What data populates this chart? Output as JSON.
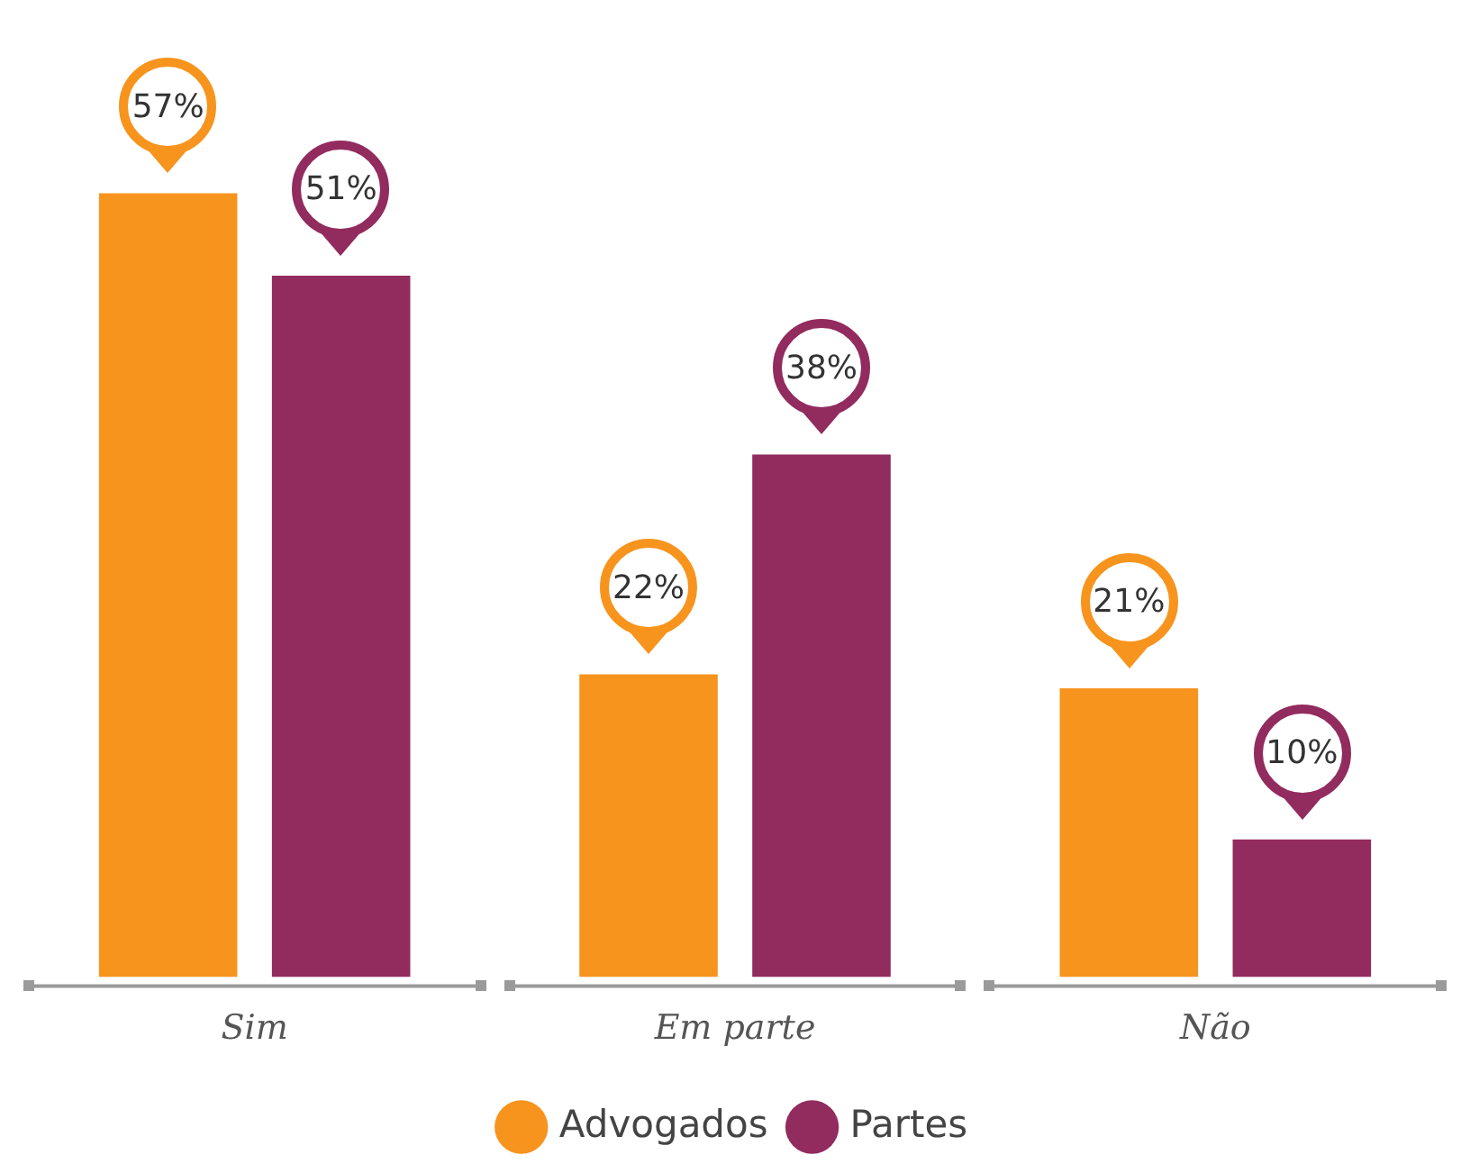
{
  "chart_data": {
    "type": "bar",
    "categories": [
      "Sim",
      "Em parte",
      "Não"
    ],
    "series": [
      {
        "name": "Advogados",
        "color": "#f7941d",
        "values": [
          57,
          22,
          21
        ],
        "value_labels": [
          "57%",
          "22%",
          "21%"
        ]
      },
      {
        "name": "Partes",
        "color": "#922b5e",
        "values": [
          51,
          38,
          10
        ],
        "value_labels": [
          "51%",
          "38%",
          "10%"
        ]
      }
    ],
    "grid": false,
    "legend": "bottom",
    "tick_labels": "x"
  }
}
